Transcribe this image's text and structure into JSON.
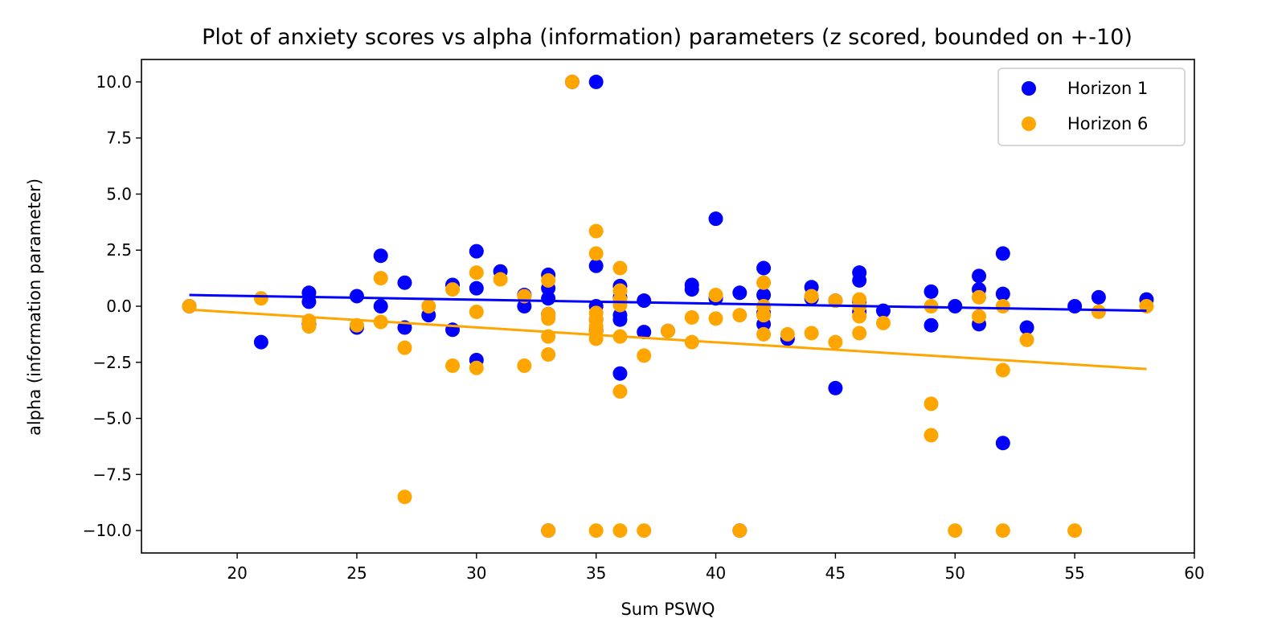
{
  "chart_data": {
    "type": "scatter",
    "title": "Plot of anxiety scores vs alpha (information) parameters (z scored, bounded on +-10)",
    "xlabel": "Sum PSWQ",
    "ylabel": "alpha (information parameter)",
    "xlim": [
      16,
      60
    ],
    "ylim": [
      -11,
      11
    ],
    "x_ticks": [
      20,
      25,
      30,
      35,
      40,
      45,
      50,
      55,
      60
    ],
    "y_ticks": [
      10.0,
      7.5,
      5.0,
      2.5,
      0.0,
      -2.5,
      -5.0,
      -7.5,
      -10.0
    ],
    "x_tick_labels": [
      "20",
      "25",
      "30",
      "35",
      "40",
      "45",
      "50",
      "55",
      "60"
    ],
    "y_tick_labels": [
      "10.0",
      "7.5",
      "5.0",
      "2.5",
      "0.0",
      "−2.5",
      "−5.0",
      "−7.5",
      "−10.0"
    ],
    "grid": false,
    "legend_position": "top-right",
    "series": [
      {
        "name": "Horizon 1",
        "color": "#0000ff",
        "points": [
          [
            18,
            0.0
          ],
          [
            21,
            -1.6
          ],
          [
            23,
            0.6
          ],
          [
            23,
            0.2
          ],
          [
            23,
            -0.8
          ],
          [
            25,
            0.45
          ],
          [
            25,
            -0.95
          ],
          [
            26,
            2.25
          ],
          [
            26,
            0.0
          ],
          [
            27,
            1.05
          ],
          [
            27,
            -0.95
          ],
          [
            28,
            -0.4
          ],
          [
            29,
            0.95
          ],
          [
            29,
            -1.05
          ],
          [
            30,
            2.45
          ],
          [
            30,
            0.8
          ],
          [
            30,
            -2.4
          ],
          [
            31,
            1.55
          ],
          [
            32,
            0.5
          ],
          [
            32,
            0.0
          ],
          [
            33,
            1.4
          ],
          [
            33,
            0.8
          ],
          [
            33,
            0.35
          ],
          [
            33,
            -0.35
          ],
          [
            33,
            -10.0
          ],
          [
            34,
            10.0
          ],
          [
            35,
            10.0
          ],
          [
            35,
            1.8
          ],
          [
            35,
            0.0
          ],
          [
            35,
            -0.6
          ],
          [
            35,
            -1.1
          ],
          [
            36,
            0.9
          ],
          [
            36,
            0.4
          ],
          [
            36,
            -0.4
          ],
          [
            36,
            -0.6
          ],
          [
            36,
            -3.0
          ],
          [
            37,
            0.25
          ],
          [
            37,
            -1.15
          ],
          [
            38,
            -1.1
          ],
          [
            39,
            0.95
          ],
          [
            39,
            0.75
          ],
          [
            40,
            3.9
          ],
          [
            40,
            0.35
          ],
          [
            41,
            0.6
          ],
          [
            41,
            -10.0
          ],
          [
            42,
            1.7
          ],
          [
            42,
            0.5
          ],
          [
            42,
            -0.3
          ],
          [
            42,
            -0.8
          ],
          [
            43,
            -1.45
          ],
          [
            44,
            0.85
          ],
          [
            44,
            0.35
          ],
          [
            45,
            0.25
          ],
          [
            45,
            -3.65
          ],
          [
            46,
            1.5
          ],
          [
            46,
            1.15
          ],
          [
            46,
            0.2
          ],
          [
            46,
            -0.25
          ],
          [
            47,
            -0.2
          ],
          [
            49,
            0.65
          ],
          [
            49,
            -0.85
          ],
          [
            50,
            0.0
          ],
          [
            51,
            1.35
          ],
          [
            51,
            0.75
          ],
          [
            51,
            -0.8
          ],
          [
            52,
            2.35
          ],
          [
            52,
            0.55
          ],
          [
            52,
            -6.1
          ],
          [
            53,
            -0.95
          ],
          [
            55,
            0.0
          ],
          [
            56,
            0.4
          ],
          [
            58,
            0.3
          ]
        ],
        "trend": {
          "x": [
            18,
            58
          ],
          "y": [
            0.5,
            -0.2
          ]
        }
      },
      {
        "name": "Horizon 6",
        "color": "#ffa500",
        "points": [
          [
            18,
            0.0
          ],
          [
            21,
            0.35
          ],
          [
            23,
            -0.65
          ],
          [
            23,
            -0.9
          ],
          [
            25,
            -0.85
          ],
          [
            26,
            1.25
          ],
          [
            26,
            -0.7
          ],
          [
            27,
            -1.85
          ],
          [
            27,
            -8.5
          ],
          [
            28,
            0.0
          ],
          [
            29,
            0.75
          ],
          [
            29,
            -2.65
          ],
          [
            30,
            1.5
          ],
          [
            30,
            -0.25
          ],
          [
            30,
            -2.75
          ],
          [
            31,
            1.2
          ],
          [
            32,
            0.45
          ],
          [
            32,
            -2.65
          ],
          [
            33,
            1.15
          ],
          [
            33,
            -0.35
          ],
          [
            33,
            -0.55
          ],
          [
            33,
            -1.35
          ],
          [
            33,
            -2.15
          ],
          [
            33,
            -10.0
          ],
          [
            34,
            10.0
          ],
          [
            35,
            3.35
          ],
          [
            35,
            2.35
          ],
          [
            35,
            -0.3
          ],
          [
            35,
            -0.6
          ],
          [
            35,
            -0.9
          ],
          [
            35,
            -1.15
          ],
          [
            35,
            -1.45
          ],
          [
            35,
            -10.0
          ],
          [
            36,
            1.7
          ],
          [
            36,
            0.7
          ],
          [
            36,
            0.3
          ],
          [
            36,
            0.05
          ],
          [
            36,
            -1.35
          ],
          [
            36,
            -3.8
          ],
          [
            36,
            -10.0
          ],
          [
            37,
            -2.2
          ],
          [
            37,
            -10.0
          ],
          [
            38,
            -1.1
          ],
          [
            39,
            -0.5
          ],
          [
            39,
            -1.6
          ],
          [
            40,
            0.5
          ],
          [
            40,
            -0.55
          ],
          [
            41,
            -0.4
          ],
          [
            41,
            -10.0
          ],
          [
            42,
            1.05
          ],
          [
            42,
            0.0
          ],
          [
            42,
            -0.4
          ],
          [
            42,
            -1.25
          ],
          [
            43,
            -1.25
          ],
          [
            44,
            0.45
          ],
          [
            44,
            -1.2
          ],
          [
            45,
            0.25
          ],
          [
            45,
            -1.6
          ],
          [
            46,
            0.3
          ],
          [
            46,
            0.0
          ],
          [
            46,
            -0.45
          ],
          [
            46,
            -1.2
          ],
          [
            47,
            -0.75
          ],
          [
            49,
            0.0
          ],
          [
            49,
            -4.35
          ],
          [
            49,
            -5.75
          ],
          [
            50,
            -10.0
          ],
          [
            51,
            0.4
          ],
          [
            51,
            -0.45
          ],
          [
            52,
            0.0
          ],
          [
            52,
            -2.85
          ],
          [
            52,
            -10.0
          ],
          [
            53,
            -1.5
          ],
          [
            55,
            -10.0
          ],
          [
            56,
            -0.25
          ],
          [
            58,
            0.0
          ]
        ],
        "trend": {
          "x": [
            18,
            58
          ],
          "y": [
            -0.15,
            -2.8
          ]
        }
      }
    ]
  }
}
